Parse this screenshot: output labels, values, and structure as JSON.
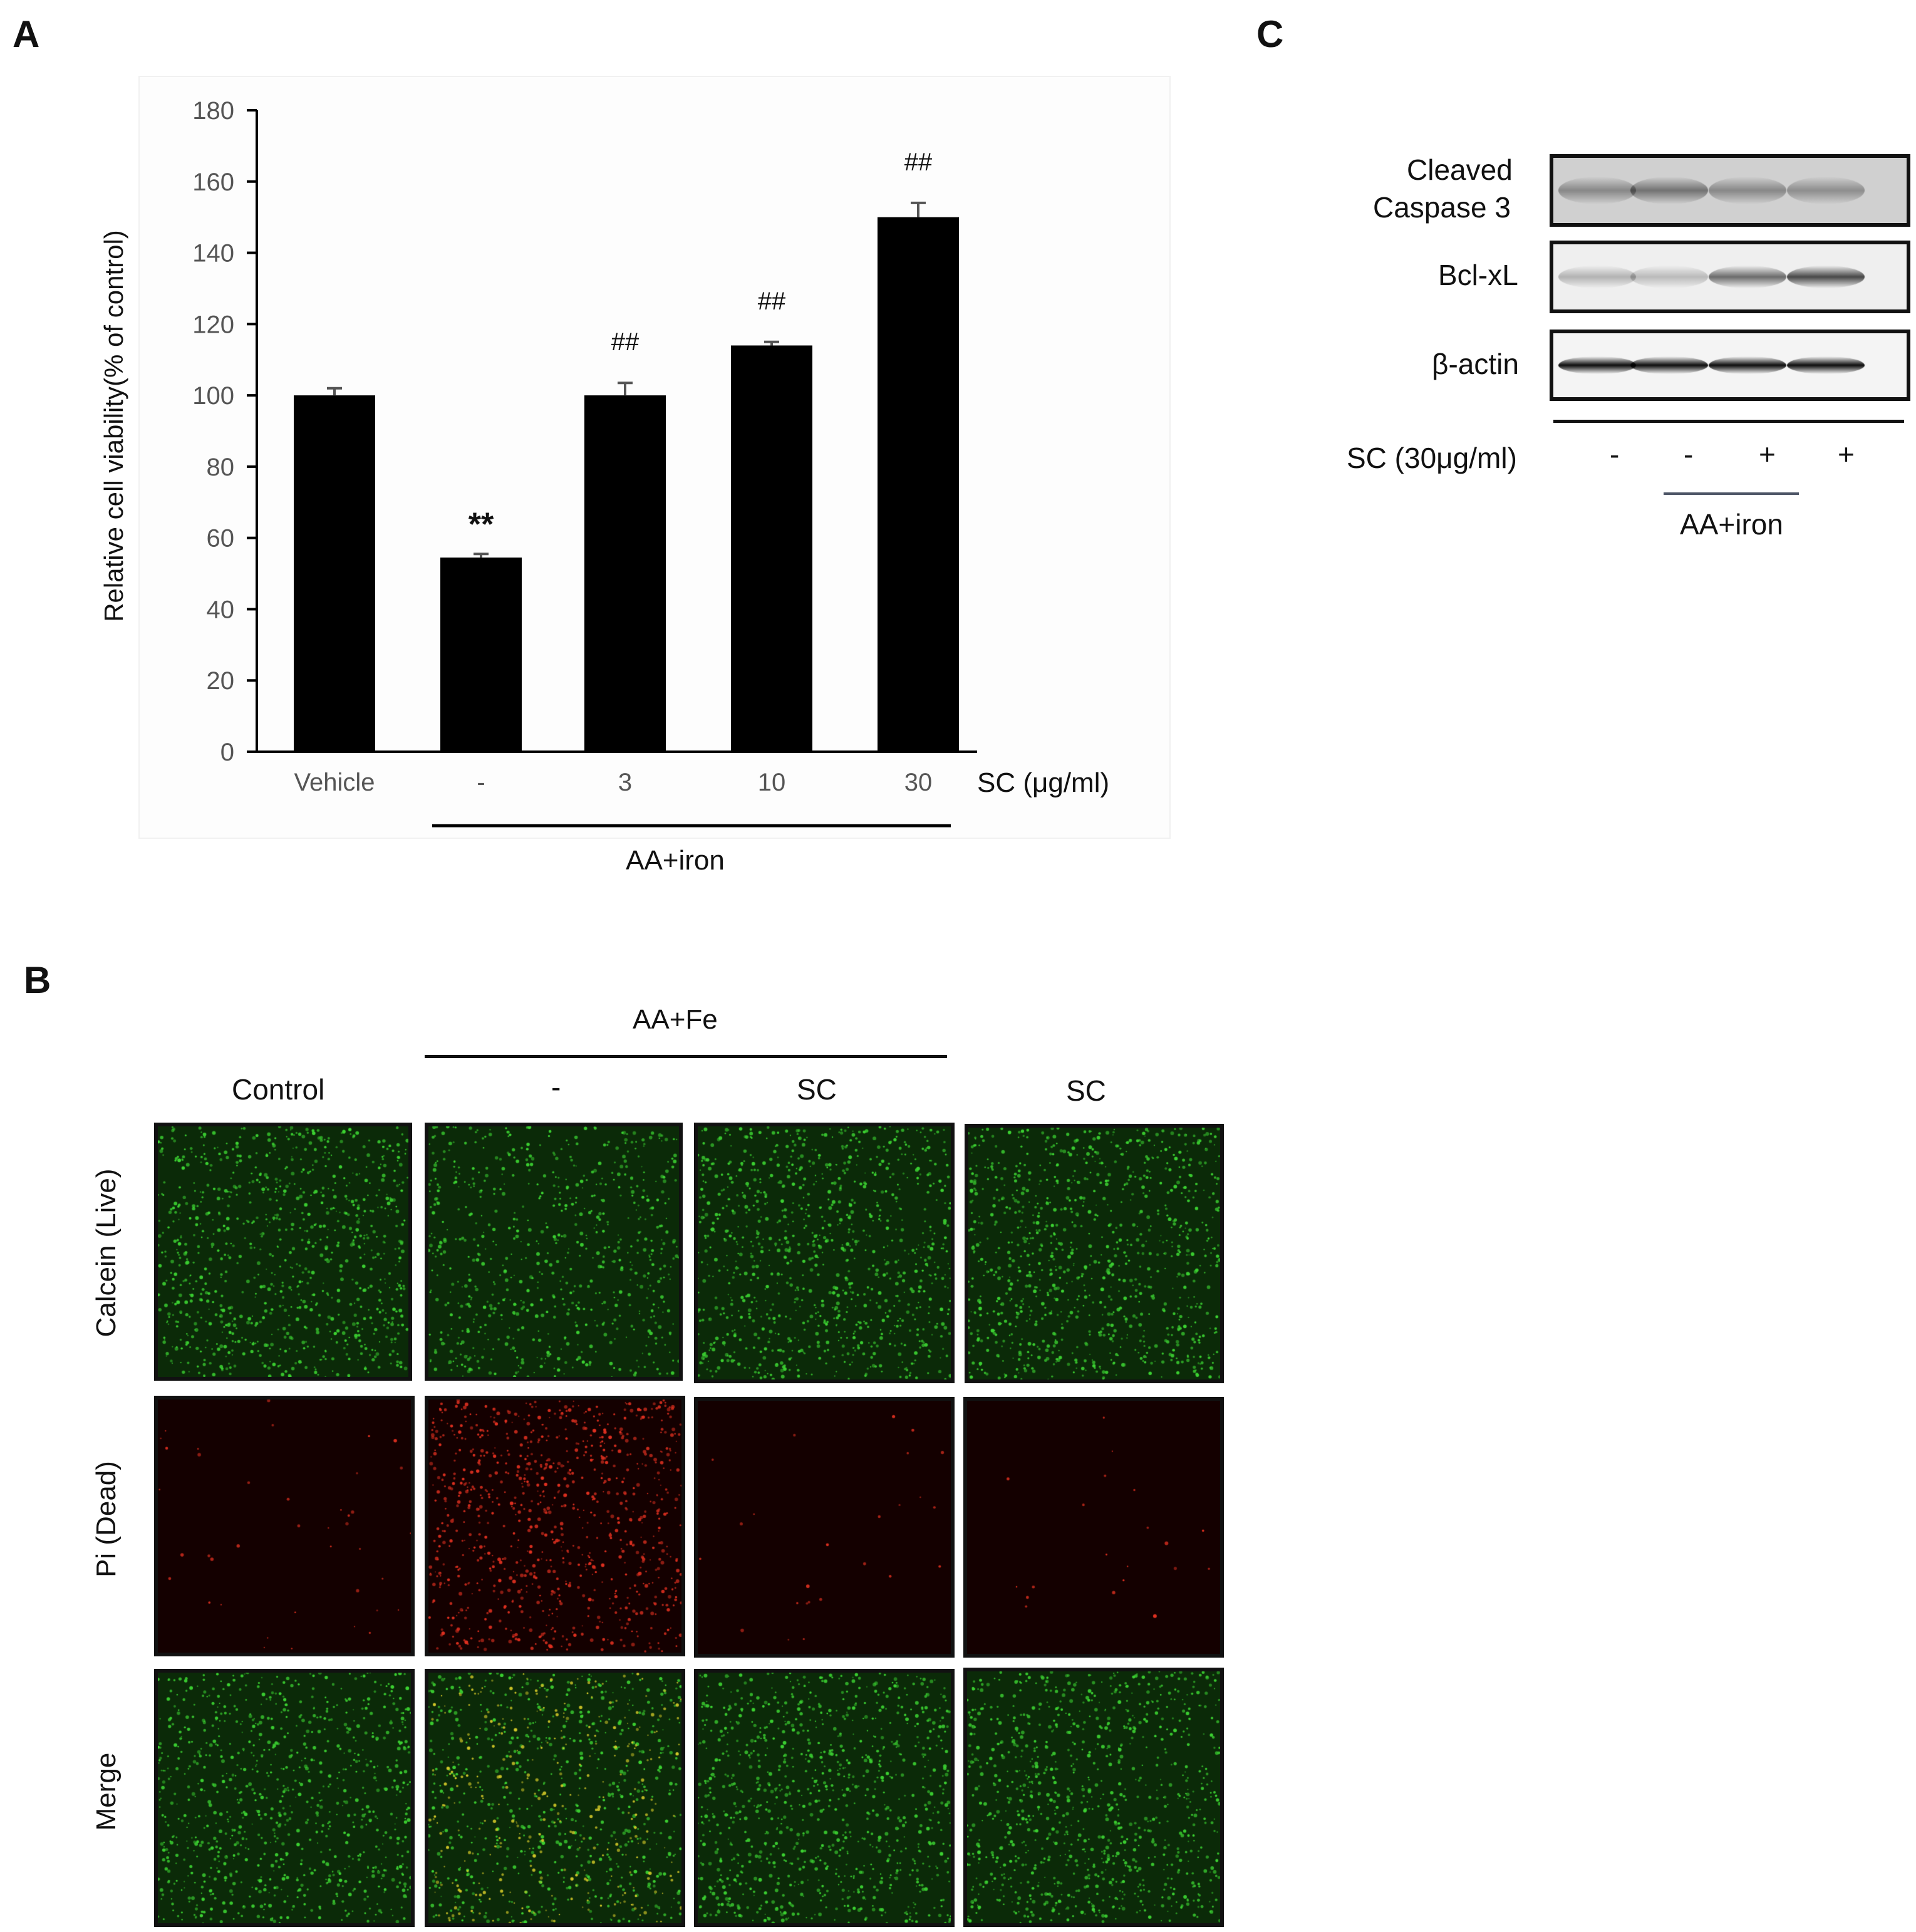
{
  "panels": {
    "a": "A",
    "b": "B",
    "c": "C"
  },
  "chart_data": {
    "type": "bar",
    "categories": [
      "Vehicle",
      "-",
      "3",
      "10",
      "30"
    ],
    "values": [
      100,
      54.5,
      100,
      114,
      150
    ],
    "errors": [
      2,
      1,
      3.5,
      1,
      4
    ],
    "annotations": [
      "",
      "**",
      "##",
      "##",
      "##"
    ],
    "ylabel": "Relative cell viability(% of control)",
    "xlabel": "SC (μg/ml)",
    "group_label": "AA+iron",
    "ylim": [
      0,
      180
    ],
    "yticks": [
      "0",
      "20",
      "40",
      "60",
      "80",
      "100",
      "120",
      "140",
      "160",
      "180"
    ],
    "bar_color": "#000000",
    "grid": false
  },
  "panel_b": {
    "group_label": "AA+Fe",
    "columns": [
      "Control",
      "-",
      "SC",
      "SC"
    ],
    "rows": [
      "Calcein (Live)",
      "Pi (Dead)",
      "Merge"
    ],
    "colors": {
      "live": "#2ecc2e",
      "dead": "#e03020",
      "background": "#0b2a08"
    }
  },
  "panel_c": {
    "blots": [
      "Cleaved\nCaspase 3",
      "Bcl-xL",
      "β-actin"
    ],
    "blot_line1": "Cleaved",
    "blot_line2": "Caspase 3",
    "treatment_label": "SC (30μg/ml)",
    "signs": [
      "-",
      "-",
      "+",
      "+"
    ],
    "group_label": "AA+iron"
  }
}
